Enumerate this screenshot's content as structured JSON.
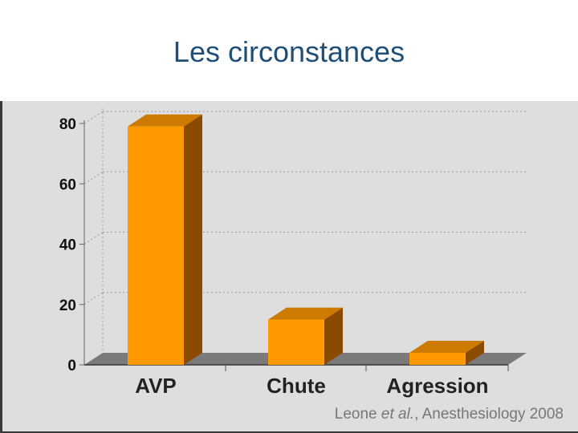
{
  "title": "Les circonstances",
  "chart_data": {
    "type": "bar",
    "categories": [
      "AVP",
      "Chute",
      "Agression"
    ],
    "values": [
      79,
      15,
      4
    ],
    "ylim": [
      0,
      80
    ],
    "yticks": [
      0,
      20,
      40,
      60,
      80
    ],
    "grid": true,
    "colors": {
      "bar_front": "#ff9900",
      "bar_top": "#cc7a00",
      "bar_side": "#8a4b00",
      "floor": "#7a7a7a"
    }
  },
  "source": {
    "author": "Leone",
    "etal": "et al.",
    "rest": ", Anesthesiology 2008"
  }
}
